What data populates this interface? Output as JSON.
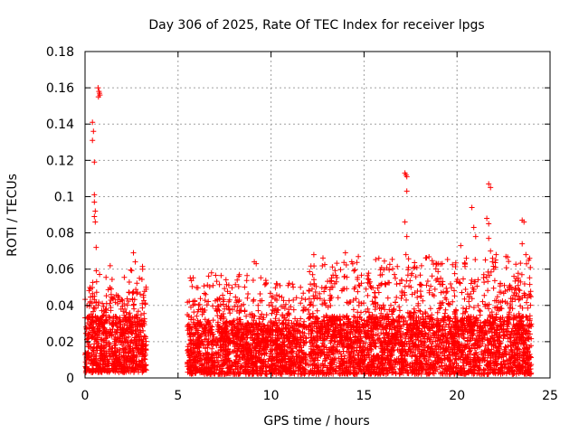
{
  "chart_data": {
    "type": "scatter",
    "title": "Day 306 of 2025, Rate Of TEC Index for receiver lpgs",
    "xlabel": "GPS time / hours",
    "ylabel": "ROTI / TECUs",
    "xlim": [
      0,
      25
    ],
    "ylim": [
      0,
      0.18
    ],
    "grid": true,
    "marker": "+",
    "series_color": "#ff0000",
    "x_ticks": [
      0,
      5,
      10,
      15,
      20,
      25
    ],
    "x_tick_labels": [
      "0",
      "5",
      "10",
      "15",
      "20",
      "25"
    ],
    "y_ticks": [
      0,
      0.02,
      0.04,
      0.06,
      0.08,
      0.1,
      0.12,
      0.14,
      0.16,
      0.18
    ],
    "y_tick_labels": [
      "0",
      "0.02",
      "0.04",
      "0.06",
      "0.08",
      "0.1",
      "0.12",
      "0.14",
      "0.16",
      "0.18"
    ],
    "data_segments": [
      {
        "x_start": 0.0,
        "x_end": 3.3,
        "y_min": 0.003,
        "y_typical": 0.02,
        "y_high": 0.05
      },
      {
        "x_start": 5.5,
        "x_end": 11.9,
        "y_min": 0.002,
        "y_typical": 0.018,
        "y_high": 0.045
      },
      {
        "x_start": 12.0,
        "x_end": 24.0,
        "y_min": 0.002,
        "y_typical": 0.02,
        "y_high": 0.055
      }
    ],
    "notable_points": [
      {
        "x": 0.5,
        "y": 0.119
      },
      {
        "x": 0.4,
        "y": 0.131
      },
      {
        "x": 0.45,
        "y": 0.136
      },
      {
        "x": 0.4,
        "y": 0.141
      },
      {
        "x": 0.5,
        "y": 0.101
      },
      {
        "x": 0.5,
        "y": 0.097
      },
      {
        "x": 0.55,
        "y": 0.092
      },
      {
        "x": 0.5,
        "y": 0.089
      },
      {
        "x": 0.55,
        "y": 0.086
      },
      {
        "x": 0.6,
        "y": 0.072
      },
      {
        "x": 0.7,
        "y": 0.16
      },
      {
        "x": 0.75,
        "y": 0.158
      },
      {
        "x": 0.8,
        "y": 0.156
      },
      {
        "x": 0.72,
        "y": 0.155
      },
      {
        "x": 0.78,
        "y": 0.157
      },
      {
        "x": 2.6,
        "y": 0.069
      },
      {
        "x": 2.7,
        "y": 0.064
      },
      {
        "x": 3.1,
        "y": 0.06
      },
      {
        "x": 6.8,
        "y": 0.058
      },
      {
        "x": 8.3,
        "y": 0.057
      },
      {
        "x": 9.1,
        "y": 0.064
      },
      {
        "x": 9.2,
        "y": 0.063
      },
      {
        "x": 12.3,
        "y": 0.068
      },
      {
        "x": 14.0,
        "y": 0.069
      },
      {
        "x": 15.8,
        "y": 0.066
      },
      {
        "x": 17.2,
        "y": 0.113
      },
      {
        "x": 17.25,
        "y": 0.112
      },
      {
        "x": 17.3,
        "y": 0.111
      },
      {
        "x": 17.3,
        "y": 0.103
      },
      {
        "x": 17.2,
        "y": 0.086
      },
      {
        "x": 17.3,
        "y": 0.078
      },
      {
        "x": 17.25,
        "y": 0.068
      },
      {
        "x": 19.2,
        "y": 0.063
      },
      {
        "x": 20.2,
        "y": 0.073
      },
      {
        "x": 20.5,
        "y": 0.066
      },
      {
        "x": 20.8,
        "y": 0.094
      },
      {
        "x": 20.9,
        "y": 0.083
      },
      {
        "x": 21.0,
        "y": 0.078
      },
      {
        "x": 21.7,
        "y": 0.107
      },
      {
        "x": 21.8,
        "y": 0.105
      },
      {
        "x": 21.6,
        "y": 0.088
      },
      {
        "x": 21.7,
        "y": 0.085
      },
      {
        "x": 21.7,
        "y": 0.077
      },
      {
        "x": 21.8,
        "y": 0.07
      },
      {
        "x": 21.9,
        "y": 0.064
      },
      {
        "x": 22.1,
        "y": 0.068
      },
      {
        "x": 23.5,
        "y": 0.087
      },
      {
        "x": 23.6,
        "y": 0.086
      },
      {
        "x": 23.5,
        "y": 0.074
      },
      {
        "x": 23.7,
        "y": 0.068
      },
      {
        "x": 23.9,
        "y": 0.066
      }
    ]
  }
}
